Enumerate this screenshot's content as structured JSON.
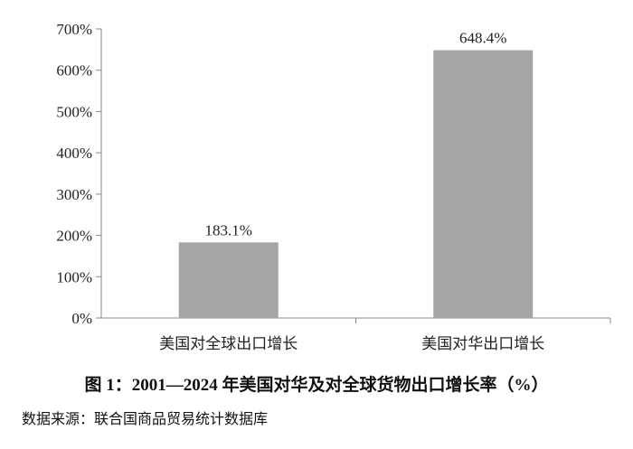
{
  "chart_data": {
    "type": "bar",
    "categories": [
      "美国对全球出口增长",
      "美国对华出口增长"
    ],
    "values": [
      183.1,
      648.4
    ],
    "data_labels": [
      "183.1%",
      "648.4%"
    ],
    "ylim": [
      0,
      700
    ],
    "yticks": [
      "0%",
      "100%",
      "200%",
      "300%",
      "400%",
      "500%",
      "600%",
      "700%"
    ],
    "grid": false,
    "bar_color": "#a5a5a5",
    "title": "图 1：2001—2024 年美国对华及对全球货物出口增长率（%）",
    "source": "数据来源：联合国商品贸易统计数据库"
  }
}
